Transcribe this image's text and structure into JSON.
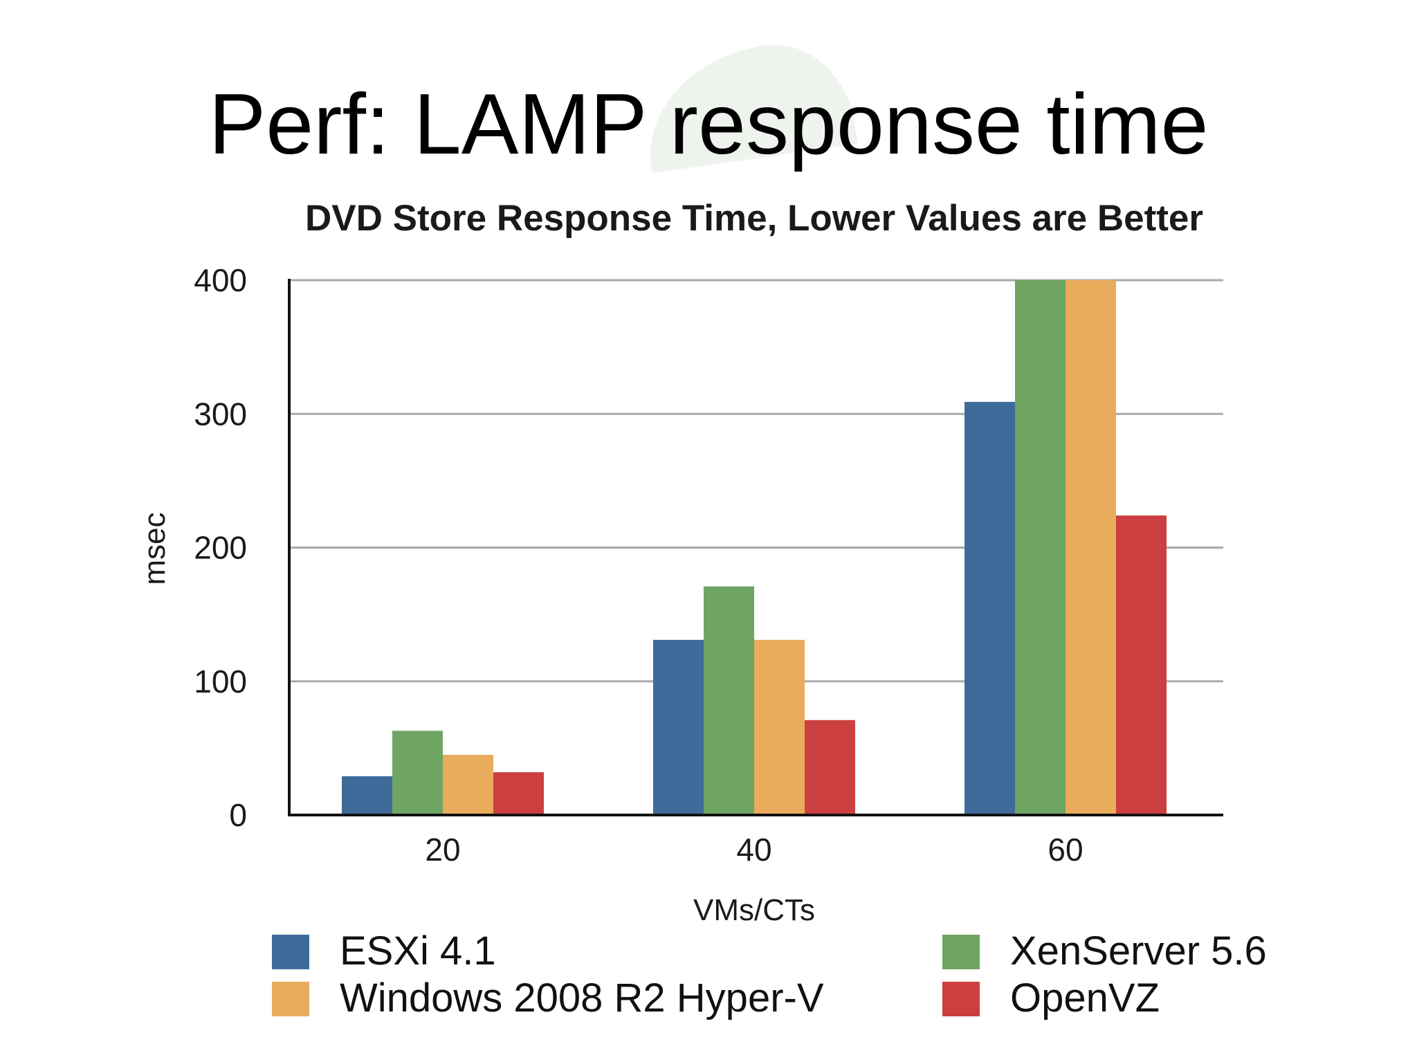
{
  "slide": {
    "title": "Perf: LAMP response time"
  },
  "chart_data": {
    "type": "bar",
    "title": "DVD Store Response Time, Lower Values are Better",
    "xlabel": "VMs/CTs",
    "ylabel": "msec",
    "categories": [
      "20",
      "40",
      "60"
    ],
    "ylim": [
      0,
      400
    ],
    "yticks": [
      0,
      100,
      200,
      300,
      400
    ],
    "grid": true,
    "legend_position": "bottom",
    "series": [
      {
        "name": "ESXi 4.1",
        "color": "#3f6b9a",
        "values": [
          29,
          131,
          309
        ]
      },
      {
        "name": "XenServer 5.6",
        "color": "#6ea563",
        "values": [
          63,
          171,
          400
        ]
      },
      {
        "name": "Windows 2008 R2 Hyper-V",
        "color": "#e9ac5c",
        "values": [
          45,
          131,
          400
        ]
      },
      {
        "name": "OpenVZ",
        "color": "#cc3f40",
        "values": [
          32,
          71,
          224
        ]
      }
    ]
  }
}
